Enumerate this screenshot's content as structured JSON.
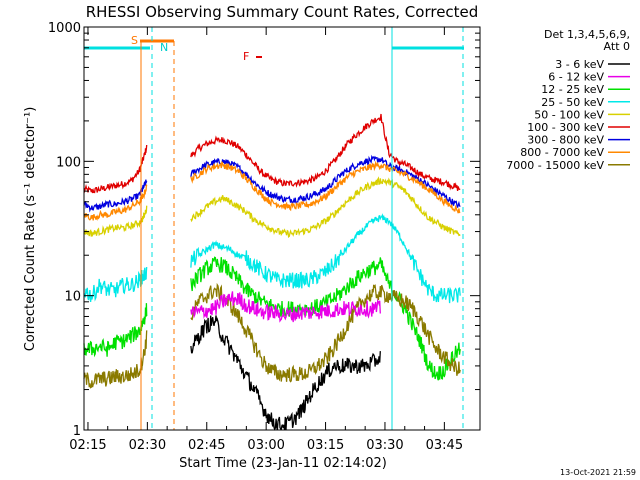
{
  "chart_data": {
    "type": "line",
    "title": "RHESSI Observing Summary Count Rates, Corrected",
    "xlabel": "Start Time (23-Jan-11 02:14:02)",
    "ylabel": "Corrected Count Rate (s⁻¹ detector⁻¹)",
    "ylim": [
      1,
      1000
    ],
    "y_scale": "log",
    "x_range_minutes_after_0214": [
      0,
      100
    ],
    "x_ticks": [
      {
        "label": "02:15",
        "minute": 1
      },
      {
        "label": "02:30",
        "minute": 16
      },
      {
        "label": "02:45",
        "minute": 31
      },
      {
        "label": "03:00",
        "minute": 46
      },
      {
        "label": "03:15",
        "minute": 61
      },
      {
        "label": "03:30",
        "minute": 76
      },
      {
        "label": "03:45",
        "minute": 91
      }
    ],
    "y_ticks": [
      {
        "label": "1",
        "value": 1
      },
      {
        "label": "10",
        "value": 10
      },
      {
        "label": "100",
        "value": 100
      },
      {
        "label": "1000",
        "value": 1000
      }
    ],
    "legend": {
      "position": "right",
      "header": [
        "Det 1,3,4,5,6,9,",
        "Att 0"
      ],
      "entries": [
        {
          "label": "3 - 6 keV",
          "color": "#000000"
        },
        {
          "label": "6 - 12 keV",
          "color": "#e800e8"
        },
        {
          "label": "12 - 25 keV",
          "color": "#00e000"
        },
        {
          "label": "25 - 50 keV",
          "color": "#00e8e8"
        },
        {
          "label": "50 - 100 keV",
          "color": "#d8d000"
        },
        {
          "label": "100 - 300 keV",
          "color": "#e00000"
        },
        {
          "label": "300 - 800 keV",
          "color": "#0000e0"
        },
        {
          "label": "800 - 7000 keV",
          "color": "#ff8800"
        },
        {
          "label": "7000 - 15000 keV",
          "color": "#8a7a00"
        }
      ]
    },
    "x": [
      0,
      2,
      4,
      6,
      8,
      10,
      12,
      14,
      15,
      15.9,
      25,
      27,
      29,
      31,
      33,
      35,
      37,
      39,
      41,
      43,
      45,
      47,
      49,
      51,
      53,
      55,
      57,
      59,
      61,
      63,
      65,
      67,
      69,
      71,
      73,
      75,
      77,
      79,
      81,
      83,
      85,
      87,
      89,
      91,
      93,
      95
    ],
    "series": [
      {
        "name": "100 - 300 keV",
        "color": "#e00000",
        "values": [
          62,
          60,
          62,
          64,
          66,
          68,
          72,
          85,
          105,
          130,
          null,
          110,
          125,
          135,
          142,
          145,
          138,
          128,
          112,
          95,
          82,
          74,
          70,
          68,
          69,
          70,
          72,
          76,
          85,
          98,
          118,
          140,
          160,
          180,
          200,
          215,
          115,
          100,
          95,
          88,
          80,
          75,
          72,
          70,
          66,
          62
        ]
      },
      {
        "name": "300 - 800 keV",
        "color": "#0000e0",
        "values": [
          48,
          45,
          46,
          48,
          48,
          50,
          52,
          56,
          64,
          72,
          null,
          80,
          88,
          94,
          98,
          100,
          96,
          90,
          80,
          70,
          62,
          57,
          54,
          52,
          52,
          53,
          55,
          58,
          62,
          70,
          80,
          88,
          95,
          100,
          102,
          104,
          92,
          88,
          84,
          78,
          72,
          66,
          60,
          55,
          50,
          46
        ]
      },
      {
        "name": "800 - 7000 keV",
        "color": "#ff8800",
        "values": [
          40,
          38,
          40,
          40,
          42,
          43,
          46,
          50,
          55,
          66,
          null,
          74,
          80,
          88,
          92,
          94,
          90,
          84,
          74,
          64,
          56,
          50,
          48,
          46,
          46,
          47,
          48,
          51,
          55,
          62,
          70,
          78,
          84,
          88,
          92,
          94,
          88,
          84,
          80,
          74,
          68,
          62,
          56,
          50,
          46,
          42
        ]
      },
      {
        "name": "50 - 100 keV",
        "color": "#d8d000",
        "values": [
          30,
          29,
          30,
          31,
          32,
          32,
          33,
          35,
          38,
          45,
          null,
          38,
          41,
          46,
          50,
          53,
          50,
          46,
          42,
          37,
          34,
          32,
          30,
          29,
          29,
          30,
          31,
          33,
          36,
          40,
          46,
          52,
          58,
          64,
          68,
          72,
          70,
          66,
          60,
          52,
          44,
          38,
          35,
          32,
          30,
          28
        ]
      },
      {
        "name": "25 - 50 keV",
        "color": "#00e8e8",
        "values": [
          11,
          10,
          12,
          11,
          11,
          12,
          12,
          13,
          14,
          15,
          null,
          18,
          20,
          22,
          24,
          23,
          22,
          20,
          19,
          17,
          15,
          14,
          13,
          13,
          13,
          13,
          13,
          14,
          15,
          17,
          20,
          24,
          28,
          32,
          36,
          38,
          36,
          30,
          24,
          18,
          14,
          11,
          10,
          10,
          10,
          10
        ]
      },
      {
        "name": "12 - 25 keV",
        "color": "#00e000",
        "values": [
          4,
          4,
          4.2,
          4,
          4.5,
          4.6,
          5,
          5.5,
          6.5,
          8,
          null,
          12,
          14,
          16,
          17,
          17,
          15,
          13,
          11,
          10,
          9,
          8.5,
          8,
          8,
          8,
          8,
          8,
          8.3,
          8.8,
          9.5,
          10.5,
          12,
          13.5,
          15,
          16,
          17,
          12,
          10,
          8,
          6,
          4.5,
          3,
          2.6,
          2.8,
          3.5,
          4
        ]
      },
      {
        "name": "7000 - 15000 keV",
        "color": "#8a7a00",
        "values": [
          2.4,
          2.3,
          2.4,
          2.4,
          2.5,
          2.5,
          2.6,
          2.8,
          3.5,
          5,
          null,
          7,
          9,
          10,
          11,
          10,
          8.5,
          7,
          5.5,
          4.3,
          3.3,
          2.8,
          2.6,
          2.6,
          2.6,
          2.6,
          2.7,
          3,
          3.3,
          4,
          5,
          6.5,
          8,
          9.5,
          10.5,
          10.5,
          10,
          9.5,
          9,
          8,
          6.5,
          5,
          4,
          3.5,
          3,
          2.8
        ]
      },
      {
        "name": "6 - 12 keV",
        "color": "#e800e8",
        "values": [
          null,
          null,
          null,
          null,
          null,
          null,
          null,
          null,
          null,
          null,
          null,
          7.5,
          7.5,
          7.8,
          8,
          9,
          9.5,
          9.5,
          8.5,
          8,
          7.6,
          7.5,
          7.4,
          7.2,
          7.3,
          7.5,
          7.5,
          7.6,
          7.7,
          7.8,
          8,
          8,
          8,
          8,
          8,
          8,
          null,
          null,
          null,
          null,
          null,
          null,
          null,
          null,
          null,
          null
        ]
      },
      {
        "name": "3 - 6 keV",
        "color": "#000000",
        "values": [
          null,
          null,
          null,
          null,
          null,
          null,
          null,
          null,
          null,
          null,
          null,
          4,
          5,
          6,
          6.5,
          5,
          4,
          3.2,
          2.5,
          2,
          1.5,
          1.2,
          1.1,
          1.1,
          1.2,
          1.4,
          1.8,
          2.2,
          2.6,
          3,
          3,
          3,
          3,
          3,
          3.2,
          3.5,
          null,
          null,
          null,
          null,
          null,
          null,
          null,
          null,
          null,
          null
        ]
      }
    ],
    "annotations": [
      {
        "label": "S",
        "color": "#ff7700"
      },
      {
        "label": "N",
        "color": "#00cccc"
      },
      {
        "label": "F",
        "color": "#e00000"
      }
    ],
    "footer_date": "13-Oct-2021 21:59"
  }
}
